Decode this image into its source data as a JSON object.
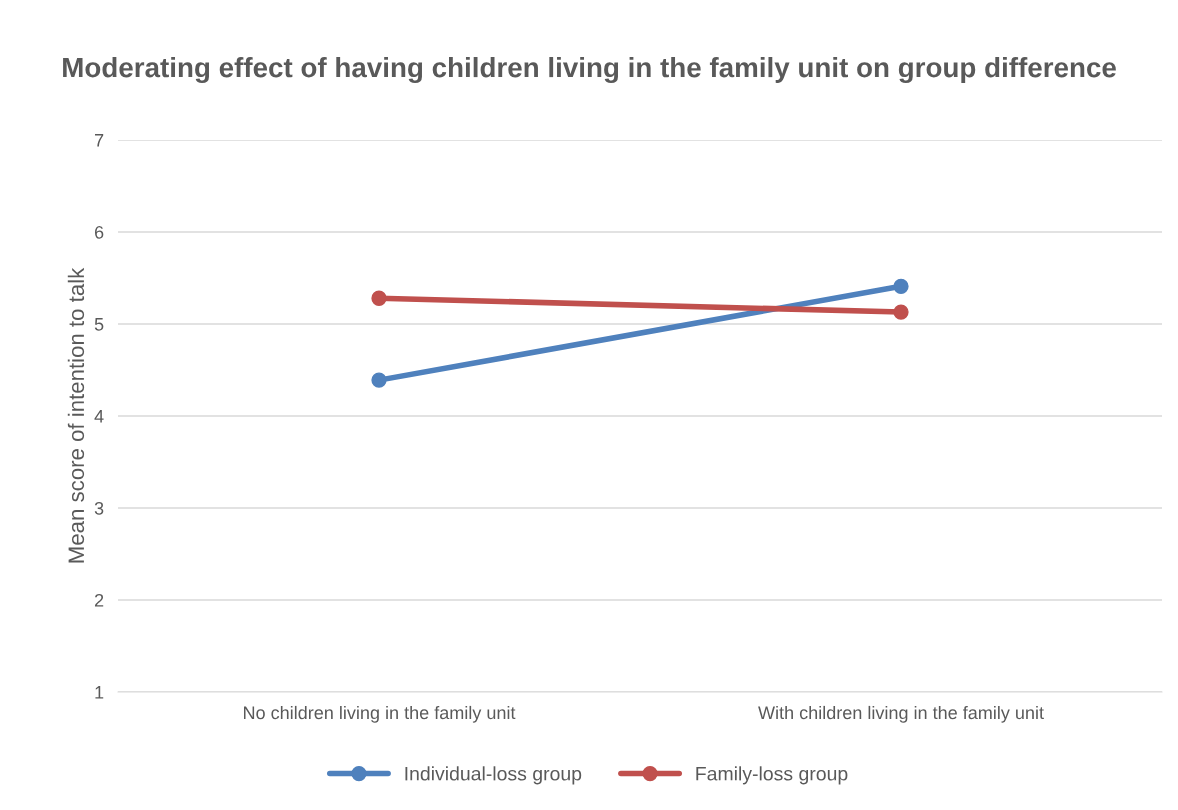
{
  "chart_data": {
    "type": "line",
    "title": "Moderating effect of having children living in the family unit on group difference",
    "ylabel": "Mean score of intention to talk",
    "categories": [
      "No children living in the family unit",
      "With children living in the family unit"
    ],
    "series": [
      {
        "name": "Individual-loss group",
        "color": "#4f81bd",
        "values": [
          4.39,
          5.41
        ]
      },
      {
        "name": "Family-loss group",
        "color": "#c0504d",
        "values": [
          5.28,
          5.13
        ]
      }
    ],
    "ylim": [
      1,
      7
    ],
    "yticks": [
      1,
      2,
      3,
      4,
      5,
      6,
      7
    ],
    "grid": "y",
    "legend": "bottom",
    "marker": "circle",
    "line_style": "solid"
  }
}
